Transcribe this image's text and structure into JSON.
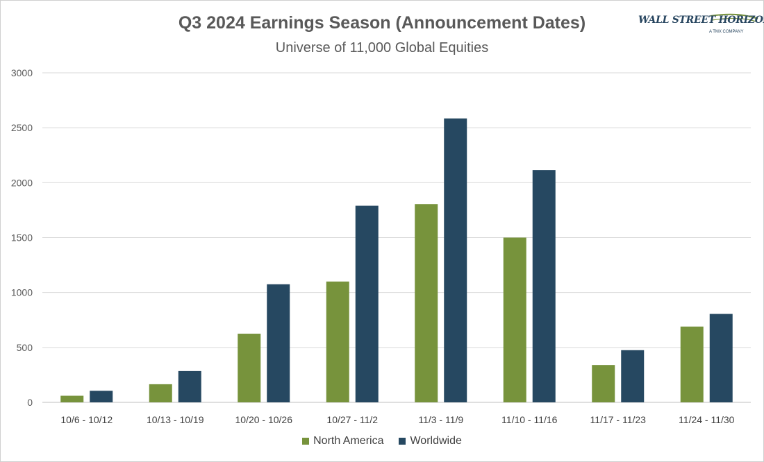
{
  "title": "Q3 2024 Earnings Season (Announcement Dates)",
  "subtitle": "Universe of 11,000 Global Equities",
  "logo": {
    "main": "WALL STREET HORIZON",
    "sub": "A TMX COMPANY"
  },
  "chart_data": {
    "type": "bar",
    "title": "Q3 2024 Earnings Season (Announcement Dates)",
    "subtitle": "Universe of 11,000 Global Equities",
    "categories": [
      "10/6 - 10/12",
      "10/13 - 10/19",
      "10/20 - 10/26",
      "10/27 - 11/2",
      "11/3 - 11/9",
      "11/10 - 11/16",
      "11/17 - 11/23",
      "11/24 - 11/30"
    ],
    "series": [
      {
        "name": "North America",
        "color": "#77933c",
        "values": [
          60,
          165,
          625,
          1100,
          1805,
          1500,
          340,
          690
        ]
      },
      {
        "name": "Worldwide",
        "color": "#264861",
        "values": [
          105,
          285,
          1075,
          1790,
          2585,
          2115,
          475,
          805
        ]
      }
    ],
    "ylim": [
      0,
      3000
    ],
    "yticks": [
      0,
      500,
      1000,
      1500,
      2000,
      2500,
      3000
    ],
    "grid": true,
    "legend": "bottom-center"
  }
}
